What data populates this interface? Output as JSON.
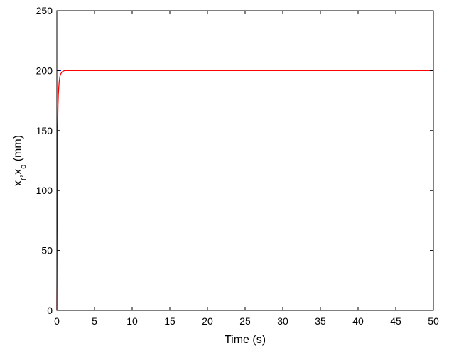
{
  "chart_data": {
    "type": "line",
    "xlabel": "Time (s)",
    "ylabel": {
      "parts": [
        {
          "text": "x",
          "sub": false
        },
        {
          "text": "r",
          "sub": true
        },
        {
          "text": ",x",
          "sub": false
        },
        {
          "text": "o",
          "sub": true
        },
        {
          "text": " (mm)",
          "sub": false
        }
      ]
    },
    "xlim": [
      0,
      50
    ],
    "ylim": [
      0,
      250
    ],
    "xticks": [
      0,
      5,
      10,
      15,
      20,
      25,
      30,
      35,
      40,
      45,
      50
    ],
    "yticks": [
      0,
      50,
      100,
      150,
      200,
      250
    ],
    "grid": false,
    "legend": "none",
    "series": [
      {
        "color": "#0000ff",
        "style": "dashed",
        "x": [
          0,
          0.01,
          50
        ],
        "y": [
          200,
          200,
          200
        ]
      },
      {
        "color": "#ff0000",
        "style": "solid",
        "x": [
          0,
          0.05,
          0.1,
          0.15,
          0.2,
          0.3,
          0.4,
          0.5,
          0.7,
          1.0,
          1.5,
          2.0,
          5,
          10,
          20,
          30,
          40,
          50
        ],
        "y": [
          0,
          105,
          150,
          170,
          180,
          190,
          195,
          197,
          199,
          200,
          200,
          200,
          200,
          200,
          200,
          200,
          200,
          200
        ]
      }
    ]
  }
}
